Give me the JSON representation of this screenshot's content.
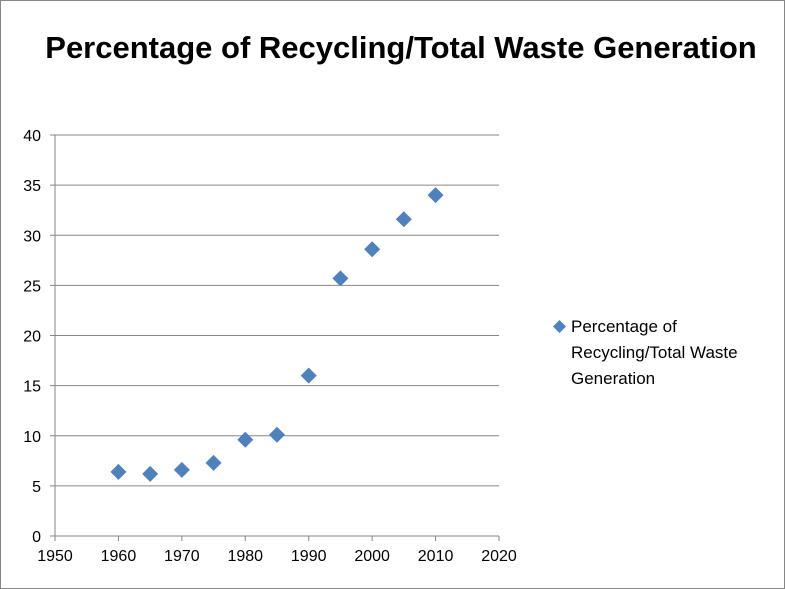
{
  "chart_data": {
    "type": "scatter",
    "title": "Percentage of Recycling/Total Waste Generation",
    "x": [
      1960,
      1965,
      1970,
      1975,
      1980,
      1985,
      1990,
      1995,
      2000,
      2005,
      2010
    ],
    "y": [
      6.4,
      6.2,
      6.6,
      7.3,
      9.6,
      10.1,
      16.0,
      25.7,
      28.6,
      31.6,
      34.0
    ],
    "series": [
      {
        "name": "Percentage of Recycling/Total Waste Generation",
        "values": [
          6.4,
          6.2,
          6.6,
          7.3,
          9.6,
          10.1,
          16.0,
          25.7,
          28.6,
          31.6,
          34.0
        ]
      }
    ],
    "xlim": [
      1950,
      2020
    ],
    "ylim": [
      0,
      40
    ],
    "xticks": [
      1950,
      1960,
      1970,
      1980,
      1990,
      2000,
      2010,
      2020
    ],
    "yticks": [
      0,
      5,
      10,
      15,
      20,
      25,
      30,
      35,
      40
    ],
    "xlabel": "",
    "ylabel": "",
    "grid": "horizontal",
    "legend_position": "right",
    "marker": "diamond",
    "colors": {
      "series": "#4f81bd",
      "gridline": "#868686",
      "axis": "#868686"
    }
  }
}
